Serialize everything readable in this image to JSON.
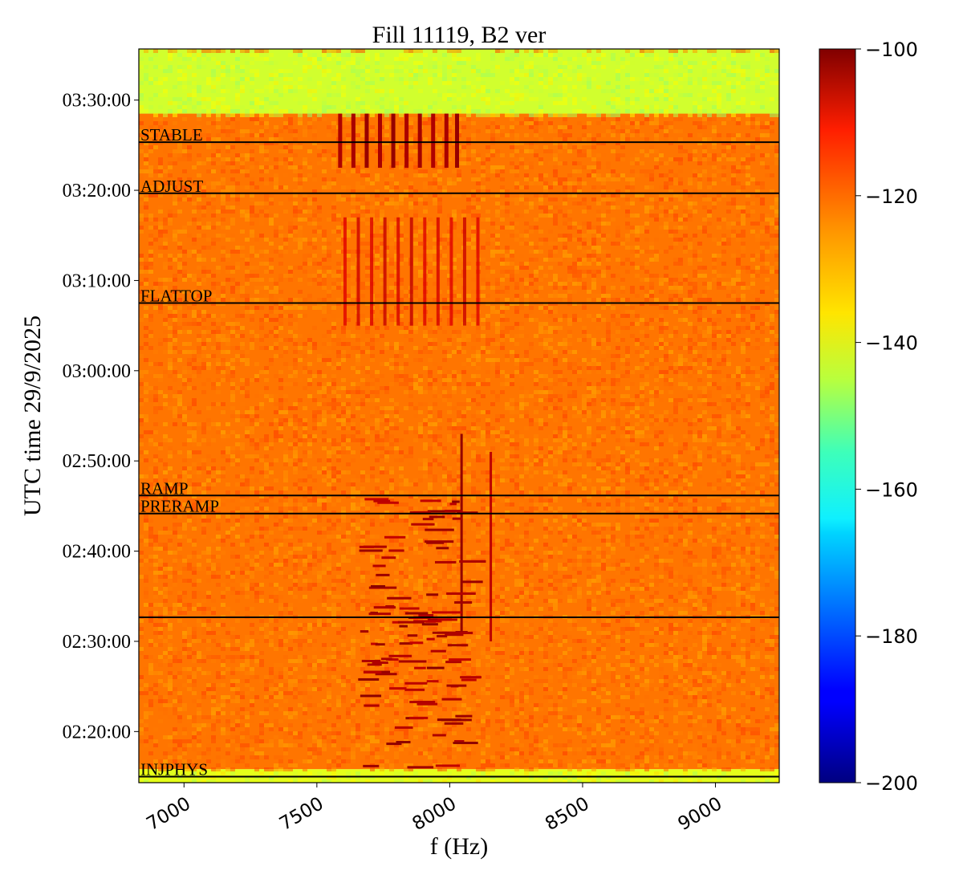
{
  "chart_data": {
    "type": "heatmap",
    "title": "Fill 11119, B2 ver",
    "xlabel": "f (Hz)",
    "ylabel": "UTC time 29/9/2025",
    "x_ticks": [
      7000,
      7500,
      8000,
      8500,
      9000
    ],
    "x_tick_labels": [
      "7000",
      "7500",
      "8000",
      "8500",
      "9000"
    ],
    "xlim": [
      6830,
      9240
    ],
    "y_ticks": [
      "02:20:00",
      "02:30:00",
      "02:40:00",
      "02:50:00",
      "03:00:00",
      "03:10:00",
      "03:20:00",
      "03:30:00"
    ],
    "ylim": [
      "02:14:20",
      "03:35:40"
    ],
    "colorbar": {
      "colormap": "jet",
      "range": [
        -200,
        -100
      ],
      "ticks": [
        -100,
        -120,
        -140,
        -160,
        -180,
        -200
      ],
      "tick_labels": [
        "−100",
        "−120",
        "−140",
        "−160",
        "−180",
        "−200"
      ]
    },
    "phase_markers": [
      {
        "label": "INJPHYS",
        "time": "02:15:00"
      },
      {
        "label": "",
        "time": "02:32:40"
      },
      {
        "label": "PRERAMP",
        "time": "02:44:10"
      },
      {
        "label": "RAMP",
        "time": "02:46:10"
      },
      {
        "label": "FLATTOP",
        "time": "03:07:30"
      },
      {
        "label": "ADJUST",
        "time": "03:19:40"
      },
      {
        "label": "STABLE",
        "time": "03:25:20"
      }
    ],
    "background_level": {
      "02:14:20-02:15:50": -140,
      "02:15:50-03:28:30": -124,
      "03:28:30-03:35:40": -142
    },
    "grid": false
  }
}
